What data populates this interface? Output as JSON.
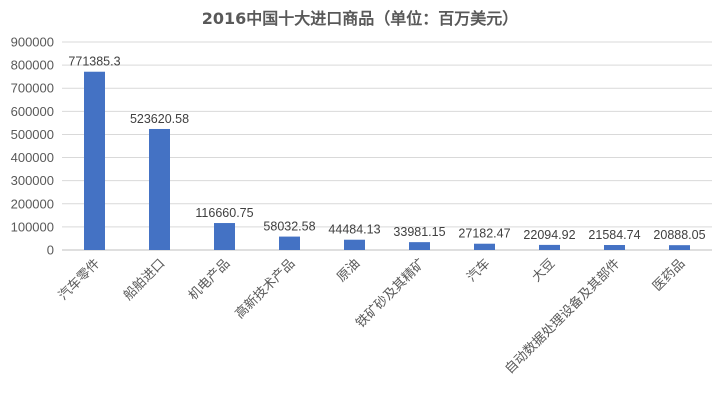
{
  "chart_data": {
    "type": "bar",
    "title": "2016中国十大进口商品（单位：百万美元）",
    "categories": [
      "汽车零件",
      "船舶进口",
      "机电产品",
      "高新技术产品",
      "原油",
      "铁矿砂及其精矿",
      "汽车",
      "大豆",
      "自动数据处理设备及其部件",
      "医药品"
    ],
    "values": [
      771385.3,
      523620.58,
      116660.75,
      58032.58,
      44484.13,
      33981.15,
      27182.47,
      22094.92,
      21584.74,
      20888.05
    ],
    "value_labels": [
      "771385.3",
      "523620.58",
      "116660.75",
      "58032.58",
      "44484.13",
      "33981.15",
      "27182.47",
      "22094.92",
      "21584.74",
      "20888.05"
    ],
    "y_ticks": [
      "0",
      "100000",
      "200000",
      "300000",
      "400000",
      "500000",
      "600000",
      "700000",
      "800000",
      "900000"
    ],
    "ylim": [
      0,
      900000
    ],
    "xlabel": "",
    "ylabel": "",
    "grid": true,
    "bar_color": "#4472c4"
  }
}
